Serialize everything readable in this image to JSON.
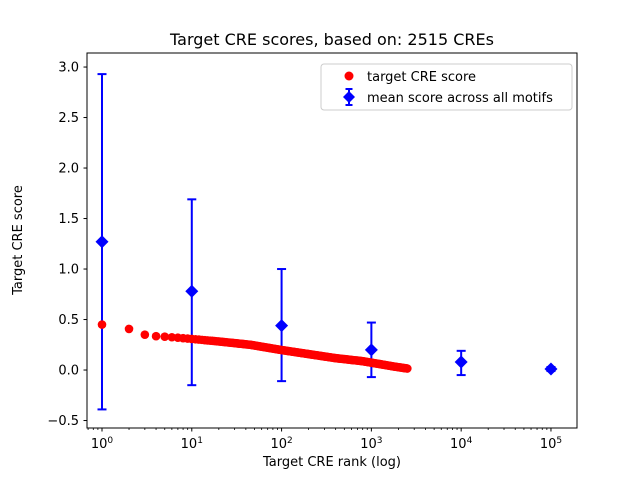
{
  "chart_data": {
    "type": "scatter",
    "title": "Target CRE scores, based on: 2515 CREs",
    "xlabel": "Target CRE rank (log)",
    "ylabel": "Target CRE score",
    "x_scale": "log",
    "grid": false,
    "n_cres": 2515,
    "x_tick_base": "10",
    "x_tick_exponents": [
      "0",
      "1",
      "2",
      "3",
      "4",
      "5"
    ],
    "y_ticks": [
      {
        "value": 3.0,
        "label": "3.0"
      },
      {
        "value": 2.5,
        "label": "2.5"
      },
      {
        "value": 2.0,
        "label": "2.0"
      },
      {
        "value": 1.5,
        "label": "1.5"
      },
      {
        "value": 1.0,
        "label": "1.0"
      },
      {
        "value": 0.5,
        "label": "0.5"
      },
      {
        "value": 0.0,
        "label": "0.0"
      },
      {
        "value": -0.5,
        "label": "−0.5"
      }
    ],
    "xlim_log10": [
      -0.167,
      5.29
    ],
    "ylim": [
      -0.574,
      3.139
    ],
    "legend_position": "upper right",
    "colors": {
      "target_series": "#ff0000",
      "mean_series": "#0000ff",
      "axis": "#000000",
      "legend_border": "#cccccc",
      "background": "#ffffff"
    },
    "series": [
      {
        "name": "target CRE score",
        "marker": "circle",
        "color": "#ff0000",
        "n_points": 2515,
        "rank_range": [
          1,
          2515
        ],
        "curve_log10rank_vs_score": [
          [
            0.0,
            0.45
          ],
          [
            0.301,
            0.407
          ],
          [
            0.477,
            0.35
          ],
          [
            0.602,
            0.335
          ],
          [
            0.699,
            0.33
          ],
          [
            0.845,
            0.32
          ],
          [
            1.0,
            0.308
          ],
          [
            1.3,
            0.283
          ],
          [
            1.653,
            0.25
          ],
          [
            2.0,
            0.198
          ],
          [
            2.3,
            0.158
          ],
          [
            2.6,
            0.118
          ],
          [
            2.9,
            0.088
          ],
          [
            3.1,
            0.058
          ],
          [
            3.25,
            0.035
          ],
          [
            3.4005,
            0.015
          ]
        ]
      },
      {
        "name": "mean score across all motifs",
        "marker": "diamond",
        "color": "#0000ff",
        "error_bars": true,
        "points": [
          {
            "rank": 1,
            "mean": 1.27,
            "lo": -0.39,
            "hi": 2.93
          },
          {
            "rank": 10,
            "mean": 0.78,
            "lo": -0.15,
            "hi": 1.69
          },
          {
            "rank": 100,
            "mean": 0.44,
            "lo": -0.11,
            "hi": 1.0
          },
          {
            "rank": 1000,
            "mean": 0.2,
            "lo": -0.07,
            "hi": 0.47
          },
          {
            "rank": 10000,
            "mean": 0.08,
            "lo": -0.05,
            "hi": 0.19
          },
          {
            "rank": 100000,
            "mean": 0.01,
            "lo": -0.01,
            "hi": 0.03
          }
        ]
      }
    ]
  }
}
